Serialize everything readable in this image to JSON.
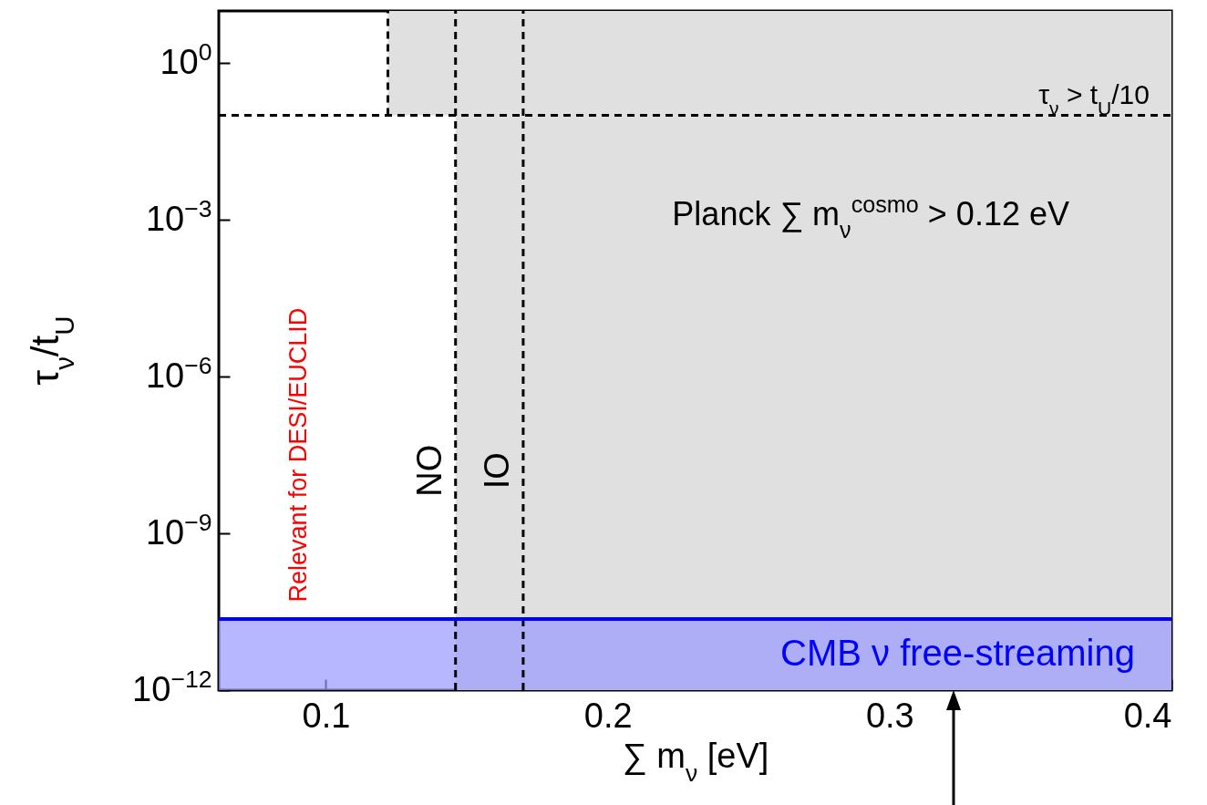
{
  "chart_data": {
    "type": "line",
    "xlabel": "∑ m$_{ν}$ [eV]",
    "ylabel": "τ$_{ν}$/t$_{U}$",
    "xlim": [
      0.062,
      0.4
    ],
    "xticks": [
      0.1,
      0.2,
      0.3,
      0.4
    ],
    "ylim": [
      1e-12,
      10
    ],
    "yticks": [
      {
        "value": 1,
        "label": "10$^{0}$"
      },
      {
        "value": 0.001,
        "label": "10$^{−3}$"
      },
      {
        "value": 1e-06,
        "label": "10$^{−6}$"
      },
      {
        "value": 1e-09,
        "label": "10$^{−9}$"
      },
      {
        "value": 1e-12,
        "label": "10$^{−12}$"
      }
    ],
    "log": "y",
    "bands": [
      {
        "axis": "x",
        "from": 0.146,
        "to": 0.4,
        "label": "Planck ∑ m$_{ν}$$^{cosmo}$ > 0.12 eV",
        "color": "#e0e0e0"
      },
      {
        "axis": "y",
        "from": 0.1,
        "to": 10,
        "label": null,
        "color": "#e0e0e0"
      },
      {
        "axis": "y",
        "from": 1e-12,
        "to": 2.3e-11,
        "label": "CMB ν free-streaming",
        "color": "#9999ff"
      }
    ],
    "ref_lines": [
      {
        "axis": "y",
        "value": 0.1,
        "label": "τ$_{ν}$ > t$_{U}$/10",
        "line_style": "dashed",
        "color": "#000000"
      },
      {
        "axis": "x",
        "value": 0.122,
        "label": null,
        "line_style": "dashed",
        "color": "#000000"
      },
      {
        "axis": "x",
        "value": 0.146,
        "label": "NO",
        "line_style": "dashed",
        "color": "#000000"
      },
      {
        "axis": "x",
        "value": 0.17,
        "label": "IO",
        "line_style": "dashed",
        "color": "#000000"
      },
      {
        "axis": "y",
        "value": 2.3e-11,
        "label": null,
        "line_style": "solid",
        "color": "#0000ff"
      }
    ],
    "annotations": [
      "Relevant for DESI/EUCLID"
    ]
  }
}
